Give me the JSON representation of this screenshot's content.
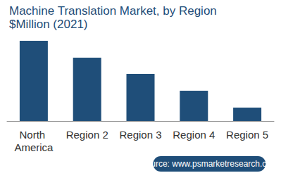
{
  "chart_data": {
    "type": "bar",
    "title": "Machine Translation Market, by Region",
    "subtitle": "$Million (2021)",
    "categories": [
      "North America",
      "Region 2",
      "Region 3",
      "Region 4",
      "Region 5"
    ],
    "values": [
      114,
      90,
      67,
      43,
      19
    ],
    "color": "#1f4e79",
    "ylim": [
      0,
      114
    ],
    "grid": false,
    "tick_labels": "x",
    "source": "Source: www.psmarketresearch.com"
  }
}
